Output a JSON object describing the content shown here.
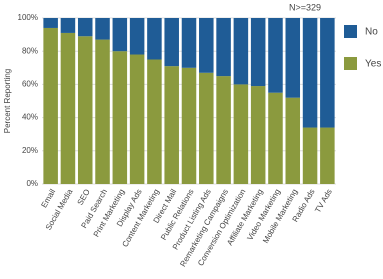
{
  "chart_data": {
    "type": "stacked_bar",
    "y_label": "Percent Reporting",
    "annotation": "N>=329",
    "categories": [
      "Email",
      "Social Media",
      "SEO",
      "Paid Search",
      "Print Marketing",
      "Display Ads",
      "Content Marketing",
      "Direct Mail",
      "Public Relations",
      "Product Listing Ads",
      "Remarketing Campaigns",
      "Conversion Optimization",
      "Affiliate Marketing",
      "Video Marketing",
      "Mobile Marketing",
      "Radio Ads",
      "TV Ads"
    ],
    "series": [
      {
        "name": "Yes",
        "color": "#8b9a3e",
        "values": [
          94,
          91,
          89,
          87,
          80,
          78,
          75,
          71,
          70,
          67,
          65,
          60,
          59,
          55,
          52,
          34,
          34
        ]
      },
      {
        "name": "No",
        "color": "#1f5c96",
        "values": [
          6,
          9,
          11,
          13,
          20,
          22,
          25,
          29,
          30,
          33,
          35,
          40,
          41,
          45,
          48,
          66,
          66
        ]
      }
    ],
    "ylim": [
      0,
      100
    ],
    "yticks": [
      {
        "value": 0,
        "label": "0%"
      },
      {
        "value": 20,
        "label": "20%"
      },
      {
        "value": 40,
        "label": "40%"
      },
      {
        "value": 60,
        "label": "60%"
      },
      {
        "value": 80,
        "label": "80%"
      },
      {
        "value": 100,
        "label": "100%"
      }
    ],
    "grid": true,
    "legend": "right"
  }
}
